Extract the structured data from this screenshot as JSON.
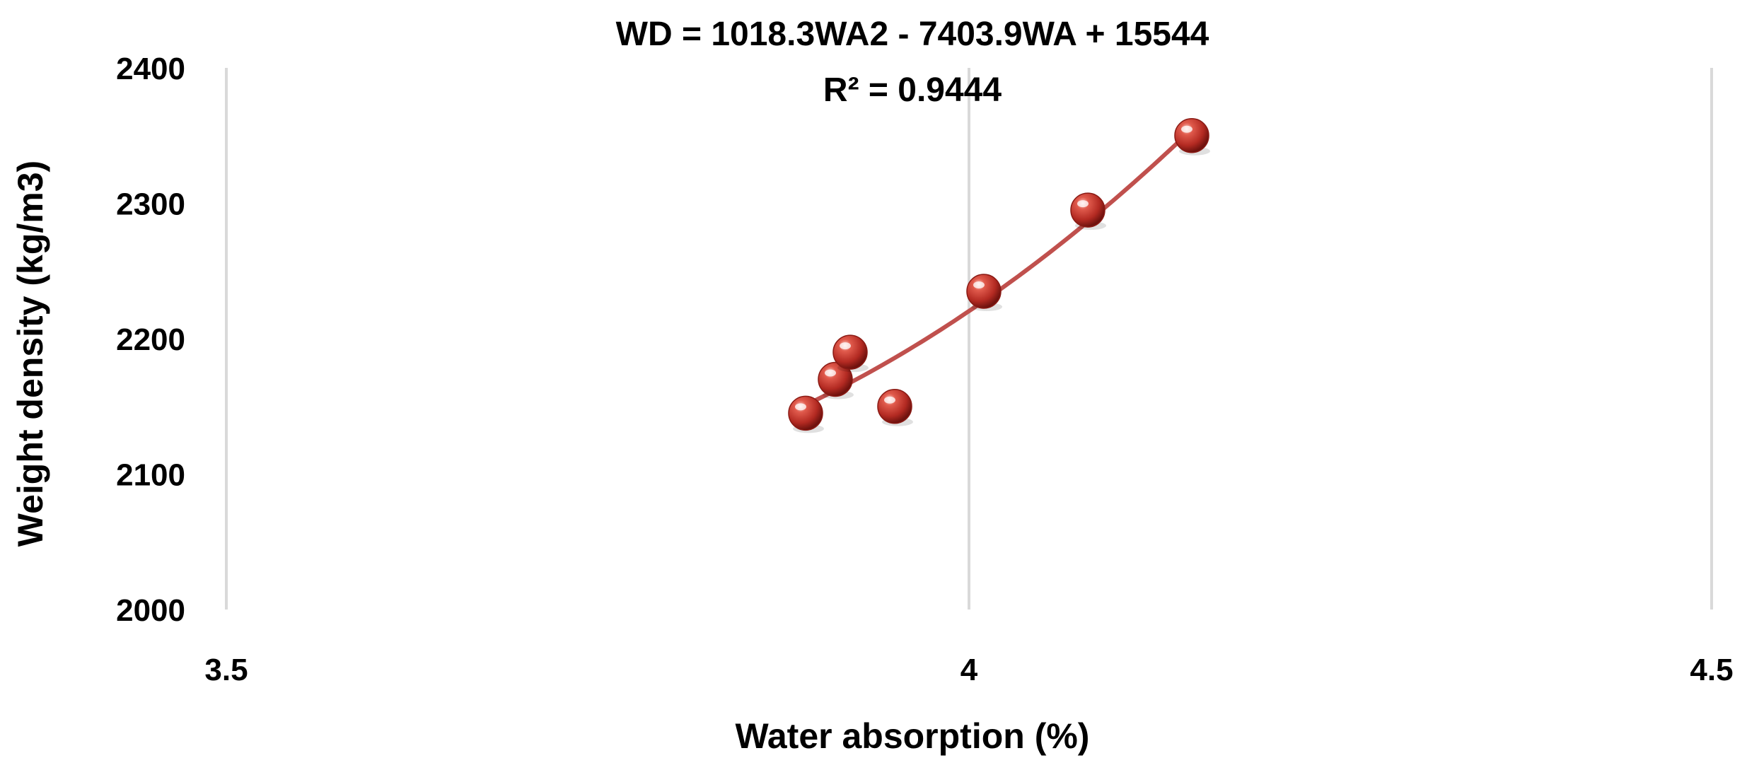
{
  "chart_data": {
    "type": "scatter",
    "title_lines": [
      "WD = 1018.3WA2 - 7403.9WA + 15544",
      "R² = 0.9444"
    ],
    "xlabel": "Water absorption (%)",
    "ylabel": "Weight density (kg/m3)",
    "xlim": [
      3.5,
      4.5
    ],
    "ylim": [
      2000,
      2400
    ],
    "xticks": [
      "3.5",
      "4",
      "4.5"
    ],
    "yticks": [
      "2000",
      "2100",
      "2200",
      "2300",
      "2400"
    ],
    "grid": "vertical",
    "points": [
      {
        "x": 3.89,
        "y": 2145
      },
      {
        "x": 3.91,
        "y": 2170
      },
      {
        "x": 3.92,
        "y": 2190
      },
      {
        "x": 3.95,
        "y": 2150
      },
      {
        "x": 4.01,
        "y": 2235
      },
      {
        "x": 4.08,
        "y": 2295
      },
      {
        "x": 4.15,
        "y": 2350
      }
    ],
    "trendline": {
      "type": "polynomial",
      "order": 2,
      "x_range": [
        3.89,
        4.15
      ]
    },
    "colors": {
      "marker": "#c0392b",
      "trendline": "#c0504d",
      "grid": "#d9d9d9"
    }
  }
}
